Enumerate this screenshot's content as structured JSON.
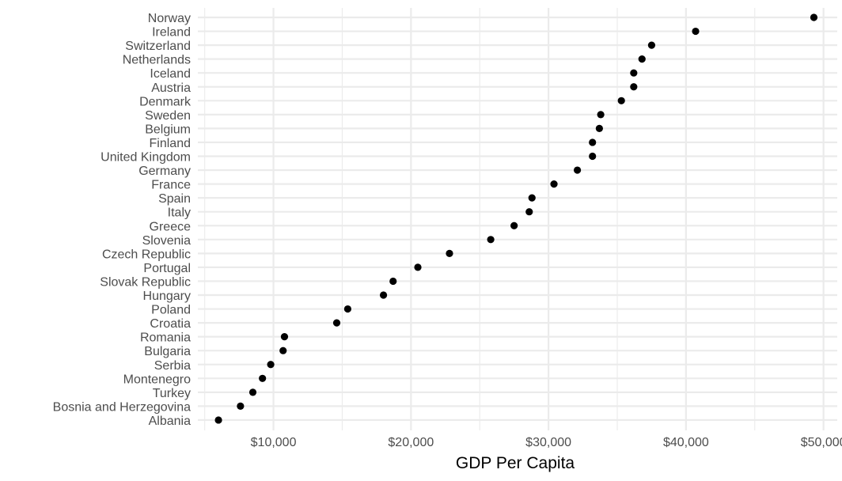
{
  "chart_data": {
    "type": "scatter",
    "title": "",
    "xlabel": "GDP Per Capita",
    "ylabel": "",
    "xlim": [
      4500,
      51000
    ],
    "x_ticks": [
      10000,
      20000,
      30000,
      40000,
      50000
    ],
    "x_tick_labels": [
      "$10,000",
      "$20,000",
      "$30,000",
      "$40,000",
      "$50,000"
    ],
    "grid": true,
    "legend": "none",
    "point_color": "#000000",
    "grid_color": "#ebebeb",
    "categories": [
      "Norway",
      "Ireland",
      "Switzerland",
      "Netherlands",
      "Iceland",
      "Austria",
      "Denmark",
      "Sweden",
      "Belgium",
      "Finland",
      "United Kingdom",
      "Germany",
      "France",
      "Spain",
      "Italy",
      "Greece",
      "Slovenia",
      "Czech Republic",
      "Portugal",
      "Slovak Republic",
      "Hungary",
      "Poland",
      "Croatia",
      "Romania",
      "Bulgaria",
      "Serbia",
      "Montenegro",
      "Turkey",
      "Bosnia and Herzegovina",
      "Albania"
    ],
    "values": [
      49300,
      40700,
      37500,
      36800,
      36200,
      36200,
      35300,
      33800,
      33700,
      33200,
      33200,
      32100,
      30400,
      28800,
      28600,
      27500,
      25800,
      22800,
      20500,
      18700,
      18000,
      15400,
      14600,
      10800,
      10700,
      9800,
      9200,
      8500,
      7600,
      6000
    ]
  }
}
